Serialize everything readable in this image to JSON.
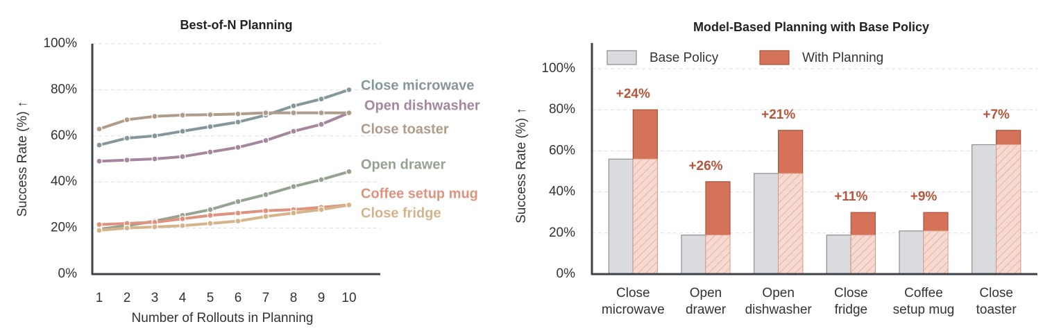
{
  "chart_data": [
    {
      "type": "line",
      "title": "Best-of-N Planning",
      "xlabel": "Number of Rollouts in Planning",
      "ylabel": "Success Rate (%) ↑",
      "x": [
        1,
        2,
        3,
        4,
        5,
        6,
        7,
        8,
        9,
        10
      ],
      "xlim": [
        0.75,
        11.125
      ],
      "xticks": [
        1,
        2,
        3,
        4,
        5,
        6,
        7,
        8,
        9,
        10
      ],
      "ylim": [
        0,
        100
      ],
      "yticks": [
        {
          "value": 0,
          "label": "0%"
        },
        {
          "value": 20,
          "label": "20%"
        },
        {
          "value": 40,
          "label": "40%"
        },
        {
          "value": 60,
          "label": "60%"
        },
        {
          "value": 80,
          "label": "80%"
        },
        {
          "value": 100,
          "label": "100%"
        }
      ],
      "grid": true,
      "series": [
        {
          "name": "Close microwave",
          "color": "#86979c",
          "values": [
            56,
            59,
            60,
            62,
            64,
            66,
            69,
            73,
            76,
            80
          ]
        },
        {
          "name": "Open dishwasher",
          "color": "#a4879f",
          "values": [
            49,
            49.5,
            50,
            51,
            53,
            55,
            58,
            62,
            65,
            70
          ]
        },
        {
          "name": "Close toaster",
          "color": "#b09c8a",
          "values": [
            63,
            67,
            68.5,
            69,
            69.2,
            69.5,
            70,
            70,
            70,
            70
          ]
        },
        {
          "name": "Open drawer",
          "color": "#96a391",
          "values": [
            19.5,
            21,
            23,
            25.5,
            28,
            31.5,
            34.5,
            38,
            41,
            44.5
          ]
        },
        {
          "name": "Coffee setup mug",
          "color": "#df927d",
          "values": [
            21.5,
            22,
            22.5,
            24,
            25.5,
            26.5,
            27.5,
            28,
            29,
            30
          ]
        },
        {
          "name": "Close fridge",
          "color": "#d5b48b",
          "values": [
            19,
            20,
            20.5,
            21,
            22,
            23,
            25,
            26.5,
            28,
            30
          ]
        }
      ]
    },
    {
      "type": "bar",
      "title": "Model-Based Planning with Base Policy",
      "ylabel": "Success Rate (%) ↑",
      "categories": [
        "Close\nmicrowave",
        "Open\ndrawer",
        "Open\ndishwasher",
        "Close\nfridge",
        "Coffee\nsetup mug",
        "Close\ntoaster"
      ],
      "ylim": [
        0,
        112.5
      ],
      "yticks": [
        {
          "value": 0,
          "label": "0%"
        },
        {
          "value": 20,
          "label": "20%"
        },
        {
          "value": 40,
          "label": "40%"
        },
        {
          "value": 60,
          "label": "60%"
        },
        {
          "value": 80,
          "label": "80%"
        },
        {
          "value": 100,
          "label": "100%"
        }
      ],
      "grid": true,
      "legend": "upper left",
      "series": [
        {
          "name": "Base Policy",
          "color": "#d9dbdf",
          "values": [
            56,
            19,
            49,
            19,
            21,
            63
          ]
        },
        {
          "name": "With Planning",
          "color": "#d4735a",
          "values": [
            80,
            45,
            70,
            30,
            30,
            70
          ]
        }
      ],
      "annotations": [
        "+24%",
        "+26%",
        "+21%",
        "+11%",
        "+9%",
        "+7%"
      ]
    }
  ]
}
